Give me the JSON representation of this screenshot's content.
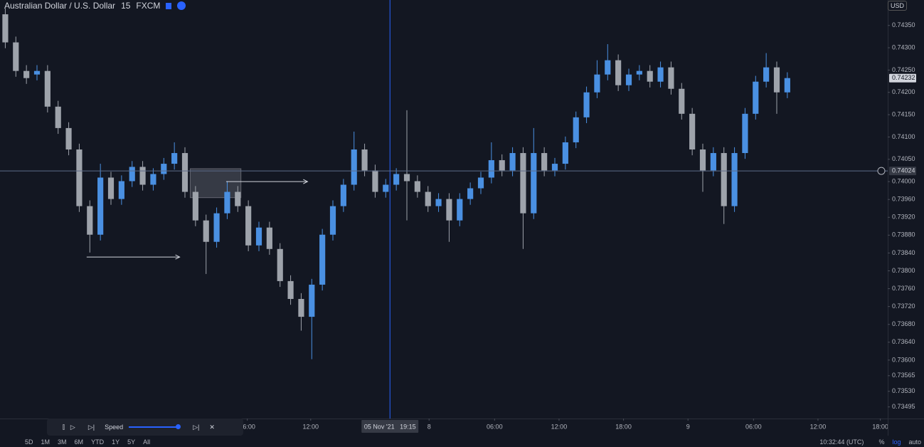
{
  "header": {
    "symbol": "Australian Dollar / U.S. Dollar",
    "interval": "15",
    "exchange": "FXCM",
    "currency": "USD"
  },
  "replay": {
    "speed_label": "Speed"
  },
  "range_buttons": [
    "5D",
    "1M",
    "3M",
    "6M",
    "YTD",
    "1Y",
    "5Y",
    "All"
  ],
  "status": {
    "clock": "10:32:44 (UTC)",
    "percent": "%",
    "log": "log",
    "auto": "auto"
  },
  "chart_data": {
    "type": "candlestick",
    "up_color": "#4a90e2",
    "down_color": "#9ea3ab",
    "x": [
      0,
      1,
      2,
      3,
      4,
      5,
      6,
      7,
      8,
      9,
      10,
      11,
      12,
      13,
      14,
      15,
      16,
      17,
      18,
      19,
      20,
      21,
      22,
      23,
      24,
      25,
      26,
      27,
      28,
      29,
      30,
      31,
      32,
      33,
      34,
      35,
      36,
      37,
      38,
      39,
      40,
      41,
      42,
      43,
      44,
      45,
      46,
      47,
      48,
      49,
      50,
      51,
      52,
      53,
      54,
      55,
      56,
      57,
      58,
      59,
      60,
      61,
      62,
      63,
      64,
      65,
      66,
      67,
      68,
      69,
      70,
      71,
      72,
      73,
      74
    ],
    "open": [
      0.74375,
      0.74312,
      0.74248,
      0.7424,
      0.74248,
      0.74168,
      0.7412,
      0.74072,
      0.73945,
      0.73881,
      0.74009,
      0.73961,
      0.74001,
      0.74033,
      0.73993,
      0.74017,
      0.7404,
      0.74064,
      0.73977,
      0.73913,
      0.73865,
      0.73929,
      0.73977,
      0.73945,
      0.73857,
      0.73897,
      0.73849,
      0.73777,
      0.73737,
      0.73697,
      0.73769,
      0.73881,
      0.73945,
      0.73993,
      0.74072,
      0.74025,
      0.73977,
      0.73993,
      0.74017,
      0.74001,
      0.73977,
      0.73945,
      0.73961,
      0.73913,
      0.73961,
      0.73985,
      0.74009,
      0.74048,
      0.74025,
      0.74064,
      0.73929,
      0.74064,
      0.74025,
      0.7404,
      0.74088,
      0.74144,
      0.742,
      0.7424,
      0.74272,
      0.74216,
      0.7424,
      0.74248,
      0.74224,
      0.74256,
      0.74208,
      0.74152,
      0.74072,
      0.74025,
      0.74064,
      0.73945,
      0.74064,
      0.74152,
      0.74224,
      0.74256,
      0.742
    ],
    "high": [
      0.74388,
      0.74325,
      0.74261,
      0.74261,
      0.74261,
      0.74181,
      0.74133,
      0.74085,
      0.73958,
      0.7404,
      0.74022,
      0.74014,
      0.74046,
      0.74046,
      0.7403,
      0.74053,
      0.74088,
      0.74077,
      0.7399,
      0.73926,
      0.73942,
      0.74001,
      0.7399,
      0.73958,
      0.7391,
      0.7391,
      0.73862,
      0.7379,
      0.7375,
      0.73782,
      0.73894,
      0.73958,
      0.74006,
      0.74112,
      0.74085,
      0.74038,
      0.74006,
      0.7403,
      0.7416,
      0.74014,
      0.7399,
      0.73974,
      0.73974,
      0.73974,
      0.73998,
      0.74022,
      0.74088,
      0.74061,
      0.74077,
      0.74077,
      0.7412,
      0.74077,
      0.74053,
      0.74101,
      0.74157,
      0.74213,
      0.74272,
      0.74308,
      0.74285,
      0.74253,
      0.74261,
      0.74261,
      0.74269,
      0.74269,
      0.74221,
      0.74165,
      0.74085,
      0.74077,
      0.74077,
      0.74077,
      0.74165,
      0.74237,
      0.74288,
      0.74269,
      0.74245
    ],
    "low": [
      0.74299,
      0.74235,
      0.74219,
      0.74227,
      0.74155,
      0.74107,
      0.74059,
      0.73932,
      0.73841,
      0.73868,
      0.73948,
      0.73948,
      0.73988,
      0.7398,
      0.7398,
      0.74004,
      0.74027,
      0.73964,
      0.739,
      0.73793,
      0.73852,
      0.73916,
      0.73932,
      0.73844,
      0.73844,
      0.73836,
      0.73764,
      0.73724,
      0.73666,
      0.73602,
      0.73756,
      0.73868,
      0.73932,
      0.7398,
      0.74012,
      0.73964,
      0.73964,
      0.7398,
      0.73913,
      0.73964,
      0.73932,
      0.73932,
      0.73865,
      0.739,
      0.73948,
      0.73972,
      0.73996,
      0.74012,
      0.74012,
      0.73849,
      0.73916,
      0.74012,
      0.74012,
      0.74027,
      0.74075,
      0.74131,
      0.74187,
      0.74227,
      0.74203,
      0.74203,
      0.74227,
      0.74211,
      0.74211,
      0.74195,
      0.74139,
      0.74059,
      0.73977,
      0.74012,
      0.73905,
      0.73932,
      0.74051,
      0.74139,
      0.74211,
      0.74152,
      0.74187
    ],
    "close": [
      0.74312,
      0.74248,
      0.74232,
      0.74248,
      0.74168,
      0.7412,
      0.74072,
      0.73945,
      0.73881,
      0.74009,
      0.73961,
      0.74001,
      0.74033,
      0.73993,
      0.74017,
      0.7404,
      0.74064,
      0.73977,
      0.73913,
      0.73865,
      0.73929,
      0.73977,
      0.73945,
      0.73857,
      0.73897,
      0.73849,
      0.73777,
      0.73737,
      0.73697,
      0.73769,
      0.73881,
      0.73945,
      0.73993,
      0.74072,
      0.74025,
      0.73977,
      0.73993,
      0.74017,
      0.74001,
      0.73977,
      0.73945,
      0.73961,
      0.73913,
      0.73961,
      0.73985,
      0.74009,
      0.74048,
      0.74025,
      0.74064,
      0.73929,
      0.74064,
      0.74025,
      0.7404,
      0.74088,
      0.74144,
      0.742,
      0.7424,
      0.74272,
      0.74216,
      0.7424,
      0.74248,
      0.74224,
      0.74256,
      0.74208,
      0.74152,
      0.74072,
      0.74025,
      0.74064,
      0.73945,
      0.74064,
      0.74152,
      0.74224,
      0.74256,
      0.742,
      0.74232
    ],
    "xlim": [
      -0.5,
      83.5
    ],
    "ylim": [
      0.73469,
      0.74407
    ],
    "yticks": [
      {
        "value": 0.7435,
        "label": "0.74350"
      },
      {
        "value": 0.743,
        "label": "0.74300"
      },
      {
        "value": 0.7425,
        "label": "0.74250"
      },
      {
        "value": 0.742,
        "label": "0.74200"
      },
      {
        "value": 0.7415,
        "label": "0.74150"
      },
      {
        "value": 0.741,
        "label": "0.74100"
      },
      {
        "value": 0.7405,
        "label": "0.74050"
      },
      {
        "value": 0.74,
        "label": "0.74000"
      },
      {
        "value": 0.7396,
        "label": "0.73960"
      },
      {
        "value": 0.7392,
        "label": "0.73920"
      },
      {
        "value": 0.7388,
        "label": "0.73880"
      },
      {
        "value": 0.7384,
        "label": "0.73840"
      },
      {
        "value": 0.738,
        "label": "0.73800"
      },
      {
        "value": 0.7376,
        "label": "0.73760"
      },
      {
        "value": 0.7372,
        "label": "0.73720"
      },
      {
        "value": 0.7368,
        "label": "0.73680"
      },
      {
        "value": 0.7364,
        "label": "0.73640"
      },
      {
        "value": 0.736,
        "label": "0.73600"
      },
      {
        "value": 0.73565,
        "label": "0.73565"
      },
      {
        "value": 0.7353,
        "label": "0.73530"
      },
      {
        "value": 0.73495,
        "label": "0.73495"
      }
    ],
    "xticks": [
      {
        "value": 22.9,
        "label": "06:00"
      },
      {
        "value": 28.9,
        "label": "12:00"
      },
      {
        "value": 40.1,
        "label": "8"
      },
      {
        "value": 46.3,
        "label": "06:00"
      },
      {
        "value": 52.4,
        "label": "12:00"
      },
      {
        "value": 58.5,
        "label": "18:00"
      },
      {
        "value": 64.6,
        "label": "9"
      },
      {
        "value": 70.8,
        "label": "06:00"
      },
      {
        "value": 76.9,
        "label": "12:00"
      },
      {
        "value": 82.8,
        "label": "18:00"
      }
    ],
    "last_price": {
      "value": 0.74232,
      "label": "0.74232"
    },
    "crosshair": {
      "x": {
        "value": 36.4,
        "label": "05 Nov '21   19:15"
      },
      "y": {
        "value": 0.74024,
        "label": "0.74024"
      }
    },
    "rays": [
      {
        "x": [
          7.7,
          16.5
        ],
        "y": 0.73831
      },
      {
        "x": [
          20.9,
          28.6
        ],
        "y": 0.74
      }
    ],
    "zone": {
      "x": [
        17.5,
        22.3
      ],
      "y": [
        0.74029,
        0.73964
      ]
    }
  }
}
